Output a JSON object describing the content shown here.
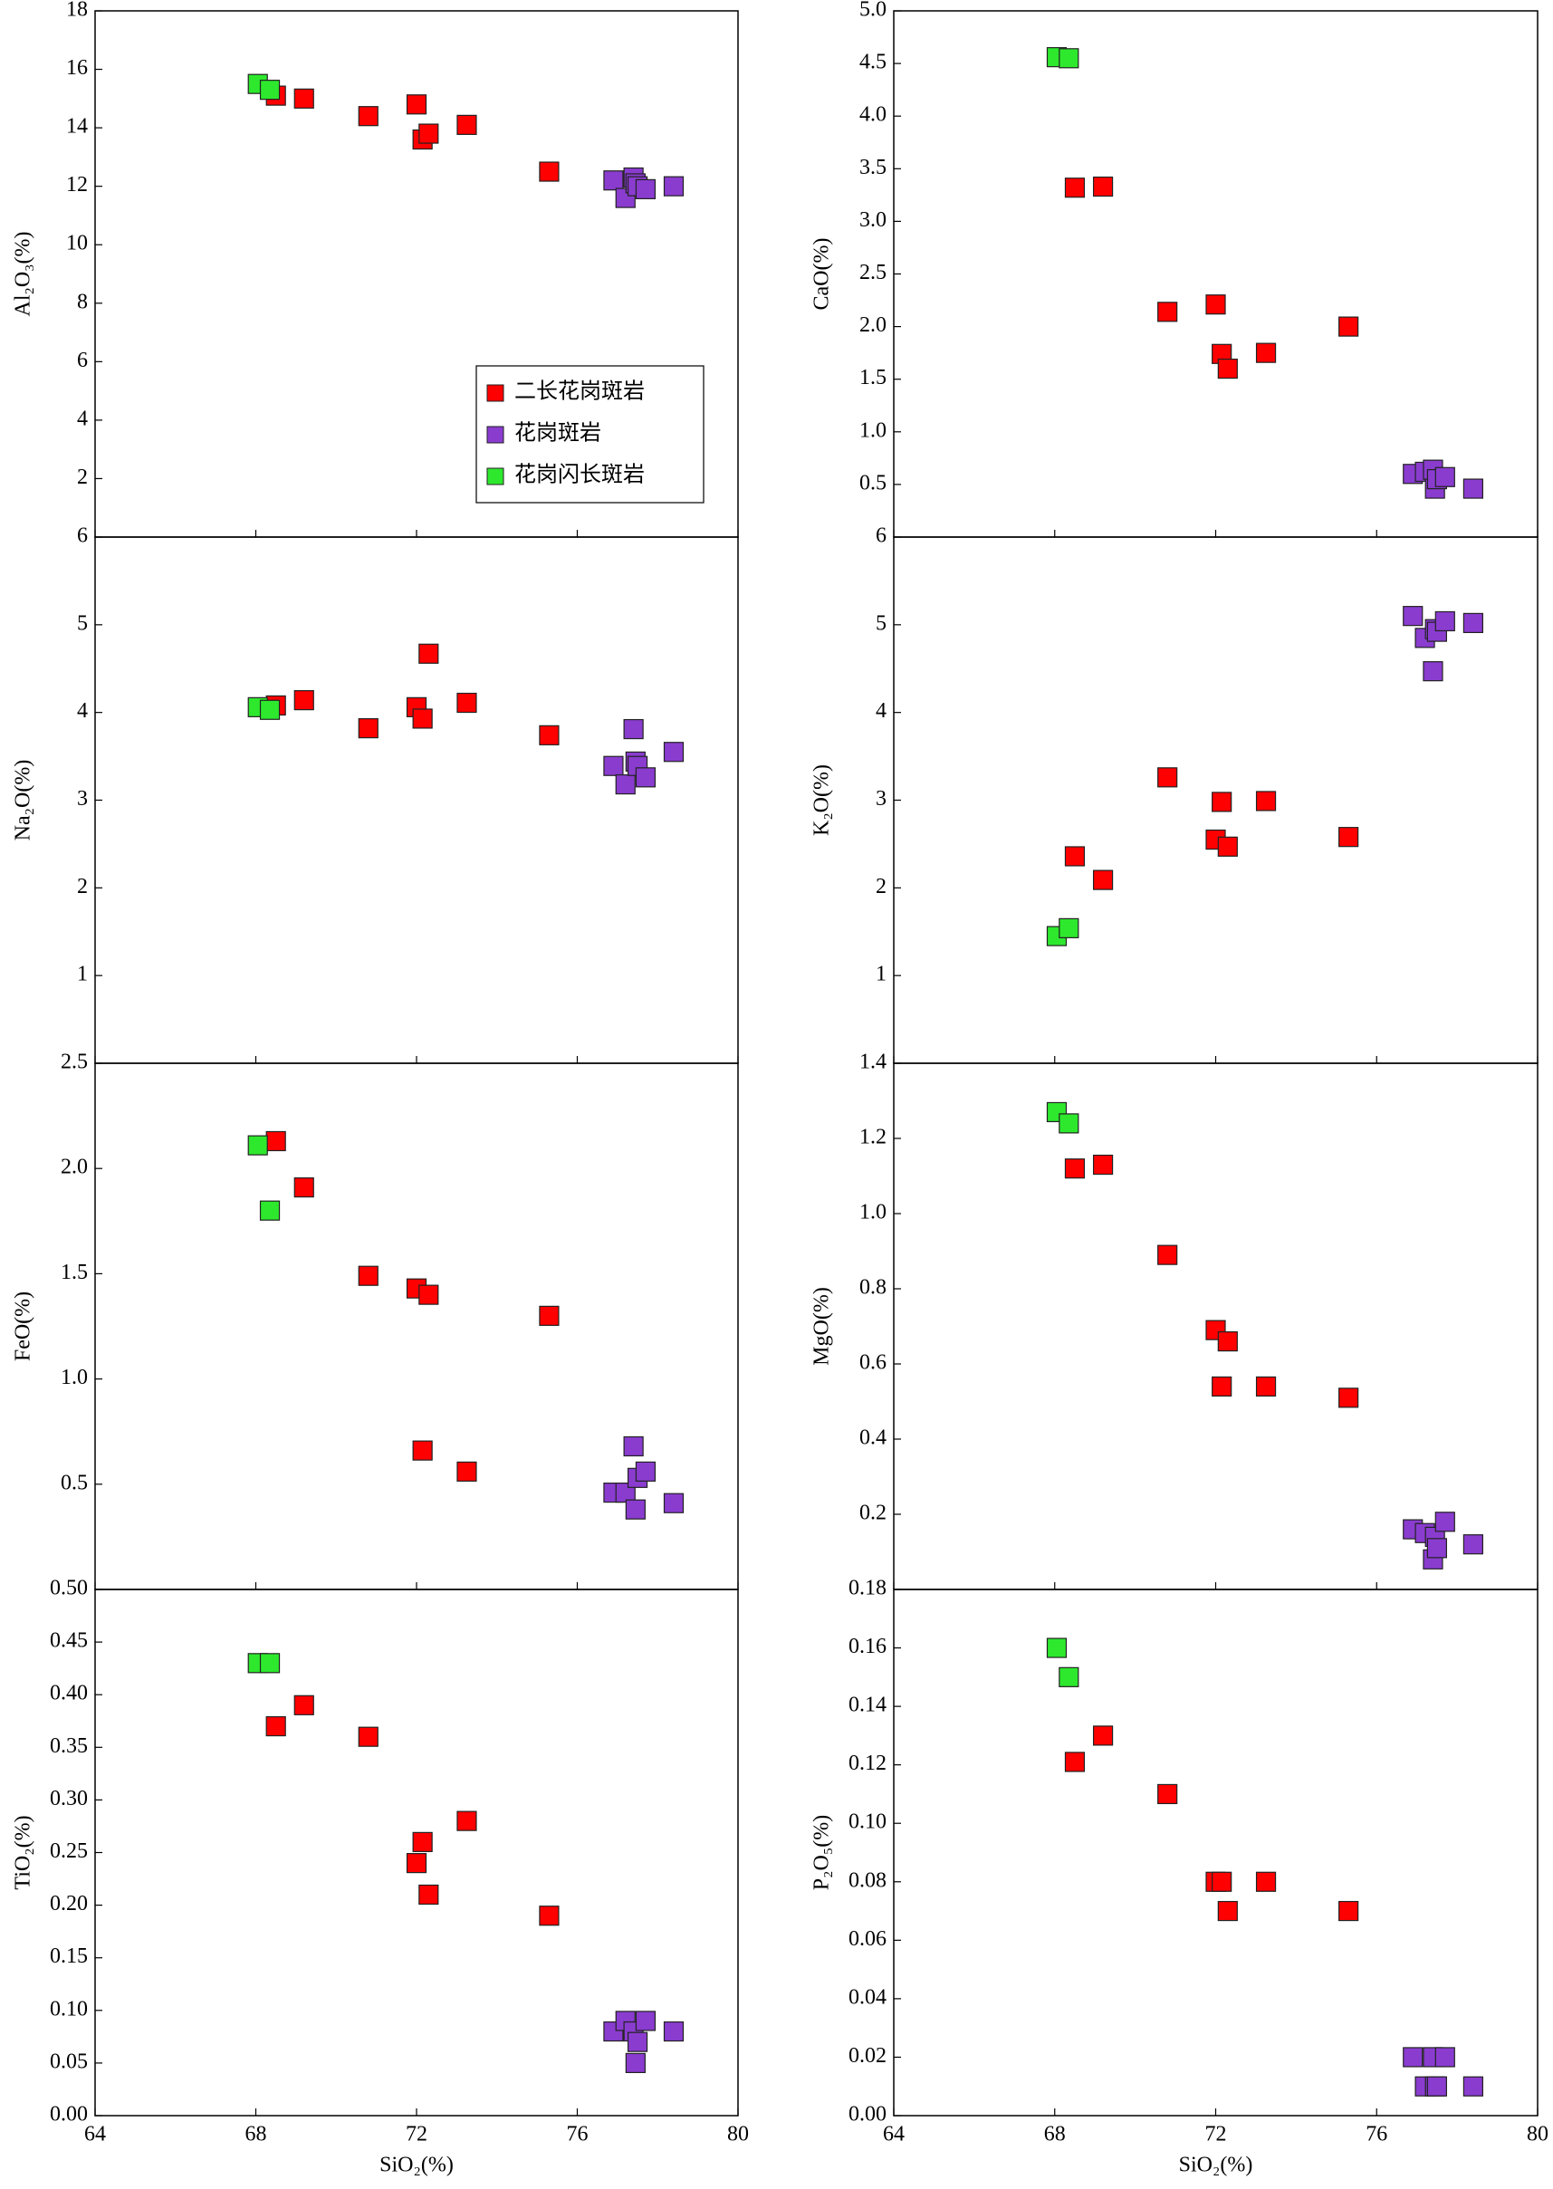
{
  "chart_data": [
    {
      "type": "scatter",
      "ylabel": "Al₂O₃(%)",
      "xlim": [
        64,
        80
      ],
      "xticks": [
        64,
        68,
        72,
        76,
        80
      ],
      "ylim": [
        0,
        18
      ],
      "yticks": [
        2,
        4,
        6,
        8,
        10,
        12,
        14,
        16,
        18
      ],
      "legend": "lower right",
      "series": [
        {
          "name": "二长花岗斑岩",
          "color": "#ff0000",
          "x": [
            68.5,
            69.2,
            70.8,
            72.0,
            72.15,
            72.3,
            73.25,
            75.3
          ],
          "values": [
            15.1,
            15.0,
            14.4,
            14.8,
            13.6,
            13.8,
            14.1,
            12.5
          ]
        },
        {
          "name": "花岗斑岩",
          "color": "#8a3ccf",
          "x": [
            76.9,
            77.2,
            77.4,
            77.45,
            77.5,
            77.7,
            78.4
          ],
          "values": [
            12.2,
            11.6,
            12.3,
            12.1,
            12.0,
            11.9,
            12.0
          ]
        },
        {
          "name": "花岗闪长斑岩",
          "color": "#2ee82e",
          "x": [
            68.05,
            68.35
          ],
          "values": [
            15.5,
            15.3
          ]
        }
      ]
    },
    {
      "type": "scatter",
      "ylabel": "CaO(%)",
      "xlim": [
        64,
        80
      ],
      "xticks": [
        64,
        68,
        72,
        76,
        80
      ],
      "ylim": [
        0,
        5
      ],
      "yticks": [
        0.5,
        {
          "value": 1,
          "label": "1.0"
        },
        1.5,
        {
          "value": 2,
          "label": "2.0"
        },
        2.5,
        {
          "value": 3,
          "label": "3.0"
        },
        3.5,
        {
          "value": 4,
          "label": "4.0"
        },
        4.5,
        {
          "value": 5,
          "label": "5.0"
        }
      ],
      "series": [
        {
          "color": "#ff0000",
          "x": [
            68.5,
            69.2,
            70.8,
            72.0,
            72.15,
            72.3,
            73.25,
            75.3
          ],
          "values": [
            3.32,
            3.33,
            2.14,
            2.21,
            1.74,
            1.6,
            1.75,
            2.0
          ]
        },
        {
          "color": "#8a3ccf",
          "x": [
            76.9,
            77.2,
            77.4,
            77.45,
            77.5,
            77.7,
            78.4
          ],
          "values": [
            0.6,
            0.62,
            0.64,
            0.46,
            0.55,
            0.57,
            0.46
          ]
        },
        {
          "color": "#2ee82e",
          "x": [
            68.05,
            68.35
          ],
          "values": [
            4.56,
            4.55
          ]
        }
      ]
    },
    {
      "type": "scatter",
      "ylabel": "Na₂O(%)",
      "xlim": [
        64,
        80
      ],
      "xticks": [
        64,
        68,
        72,
        76,
        80
      ],
      "ylim": [
        0,
        6
      ],
      "yticks": [
        1,
        2,
        3,
        4,
        5,
        6
      ],
      "series": [
        {
          "color": "#ff0000",
          "x": [
            68.5,
            69.2,
            70.8,
            72.0,
            72.15,
            72.3,
            73.25,
            75.3
          ],
          "values": [
            4.08,
            4.14,
            3.82,
            4.06,
            3.93,
            4.67,
            4.11,
            3.74
          ]
        },
        {
          "color": "#8a3ccf",
          "x": [
            76.9,
            77.2,
            77.4,
            77.45,
            77.5,
            77.7,
            78.4
          ],
          "values": [
            3.39,
            3.18,
            3.81,
            3.44,
            3.39,
            3.26,
            3.55
          ]
        },
        {
          "color": "#2ee82e",
          "x": [
            68.05,
            68.35
          ],
          "values": [
            4.06,
            4.03
          ]
        }
      ]
    },
    {
      "type": "scatter",
      "ylabel": "K₂O(%)",
      "xlim": [
        64,
        80
      ],
      "xticks": [
        64,
        68,
        72,
        76,
        80
      ],
      "ylim": [
        0,
        6
      ],
      "yticks": [
        1,
        2,
        3,
        4,
        5,
        6
      ],
      "series": [
        {
          "color": "#ff0000",
          "x": [
            68.5,
            69.2,
            70.8,
            72.0,
            72.15,
            72.3,
            73.25,
            75.3
          ],
          "values": [
            2.36,
            2.09,
            3.26,
            2.55,
            2.98,
            2.47,
            2.99,
            2.58
          ]
        },
        {
          "color": "#8a3ccf",
          "x": [
            76.9,
            77.2,
            77.4,
            77.45,
            77.5,
            77.7,
            78.4
          ],
          "values": [
            5.1,
            4.85,
            4.47,
            4.95,
            4.92,
            5.04,
            5.02
          ]
        },
        {
          "color": "#2ee82e",
          "x": [
            68.05,
            68.35
          ],
          "values": [
            1.45,
            1.54
          ]
        }
      ]
    },
    {
      "type": "scatter",
      "ylabel": "FeO(%)",
      "xlim": [
        64,
        80
      ],
      "xticks": [
        64,
        68,
        72,
        76,
        80
      ],
      "ylim": [
        0,
        2.5
      ],
      "yticks": [
        0.5,
        {
          "value": 1,
          "label": "1.0"
        },
        1.5,
        {
          "value": 2,
          "label": "2.0"
        },
        2.5
      ],
      "series": [
        {
          "color": "#ff0000",
          "x": [
            68.5,
            69.2,
            70.8,
            72.0,
            72.15,
            72.3,
            73.25,
            75.3
          ],
          "values": [
            2.13,
            1.91,
            1.49,
            1.43,
            0.66,
            1.4,
            0.56,
            1.3
          ]
        },
        {
          "color": "#8a3ccf",
          "x": [
            76.9,
            77.2,
            77.4,
            77.45,
            77.5,
            77.7,
            78.4
          ],
          "values": [
            0.46,
            0.46,
            0.68,
            0.38,
            0.53,
            0.56,
            0.41
          ]
        },
        {
          "color": "#2ee82e",
          "x": [
            68.05,
            68.35
          ],
          "values": [
            2.11,
            1.8
          ]
        }
      ]
    },
    {
      "type": "scatter",
      "ylabel": "MgO(%)",
      "xlim": [
        64,
        80
      ],
      "xticks": [
        64,
        68,
        72,
        76,
        80
      ],
      "ylim": [
        0,
        1.4
      ],
      "yticks": [
        0.2,
        0.4,
        0.6,
        0.8,
        {
          "value": 1,
          "label": "1.0"
        },
        1.2,
        1.4
      ],
      "series": [
        {
          "color": "#ff0000",
          "x": [
            68.5,
            69.2,
            70.8,
            72.0,
            72.15,
            72.3,
            73.25,
            75.3
          ],
          "values": [
            1.12,
            1.13,
            0.89,
            0.69,
            0.54,
            0.66,
            0.54,
            0.51
          ]
        },
        {
          "color": "#8a3ccf",
          "x": [
            76.9,
            77.2,
            77.4,
            77.45,
            77.5,
            77.7,
            78.4
          ],
          "values": [
            0.16,
            0.15,
            0.08,
            0.14,
            0.11,
            0.18,
            0.12
          ]
        },
        {
          "color": "#2ee82e",
          "x": [
            68.05,
            68.35
          ],
          "values": [
            1.27,
            1.24
          ]
        }
      ]
    },
    {
      "type": "scatter",
      "ylabel": "TiO₂(%)",
      "xlabel": "SiO₂(%)",
      "xlim": [
        64,
        80
      ],
      "xticks": [
        64,
        68,
        72,
        76,
        80
      ],
      "ylim": [
        0,
        0.5
      ],
      "yticks": [
        {
          "value": 0,
          "label": "0.00"
        },
        0.05,
        {
          "value": 0.1,
          "label": "0.10"
        },
        0.15,
        {
          "value": 0.2,
          "label": "0.20"
        },
        0.25,
        {
          "value": 0.3,
          "label": "0.30"
        },
        0.35,
        {
          "value": 0.4,
          "label": "0.40"
        },
        0.45,
        {
          "value": 0.5,
          "label": "0.50"
        }
      ],
      "series": [
        {
          "color": "#ff0000",
          "x": [
            68.5,
            69.2,
            70.8,
            72.0,
            72.15,
            72.3,
            73.25,
            75.3
          ],
          "values": [
            0.37,
            0.39,
            0.36,
            0.24,
            0.26,
            0.21,
            0.28,
            0.19
          ]
        },
        {
          "color": "#8a3ccf",
          "x": [
            76.9,
            77.2,
            77.4,
            77.45,
            77.5,
            77.7,
            78.4
          ],
          "values": [
            0.08,
            0.09,
            0.08,
            0.05,
            0.07,
            0.09,
            0.08
          ]
        },
        {
          "color": "#2ee82e",
          "x": [
            68.05,
            68.35
          ],
          "values": [
            0.43,
            0.43
          ]
        }
      ]
    },
    {
      "type": "scatter",
      "ylabel": "P₂O₅(%)",
      "xlabel": "SiO₂(%)",
      "xlim": [
        64,
        80
      ],
      "xticks": [
        64,
        68,
        72,
        76,
        80
      ],
      "ylim": [
        0,
        0.18
      ],
      "yticks": [
        {
          "value": 0,
          "label": "0.00"
        },
        0.02,
        0.04,
        0.06,
        0.08,
        {
          "value": 0.1,
          "label": "0.10"
        },
        0.12,
        0.14,
        0.16,
        0.18
      ],
      "series": [
        {
          "color": "#ff0000",
          "x": [
            68.5,
            69.2,
            70.8,
            72.0,
            72.15,
            72.3,
            73.25,
            75.3
          ],
          "values": [
            0.121,
            0.13,
            0.11,
            0.08,
            0.08,
            0.07,
            0.08,
            0.07
          ]
        },
        {
          "color": "#8a3ccf",
          "x": [
            76.9,
            77.2,
            77.4,
            77.45,
            77.5,
            77.7,
            78.4
          ],
          "values": [
            0.02,
            0.01,
            0.02,
            0.01,
            0.01,
            0.02,
            0.01
          ]
        },
        {
          "color": "#2ee82e",
          "x": [
            68.05,
            68.35
          ],
          "values": [
            0.16,
            0.15
          ]
        }
      ]
    }
  ]
}
